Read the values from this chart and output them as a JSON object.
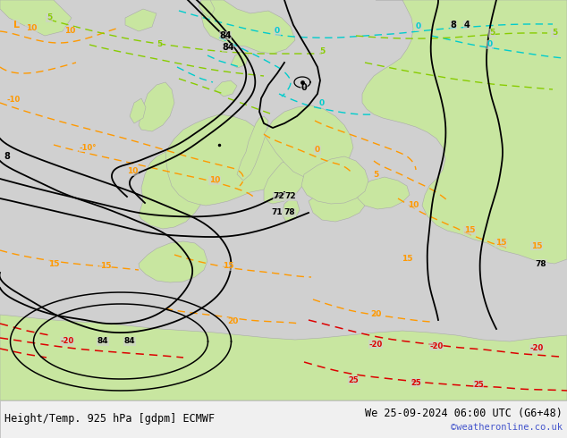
{
  "title_left": "Height/Temp. 925 hPa [gdpm] ECMWF",
  "title_right": "We 25-09-2024 06:00 UTC (G6+48)",
  "copyright": "©weatheronline.co.uk",
  "fig_width": 6.34,
  "fig_height": 4.9,
  "dpi": 100,
  "sea_color": "#d0d0d0",
  "land_color": "#c8e6a0",
  "border_color": "#aaaaaa",
  "bottom_bar_color": "#f0f0f0",
  "title_fontsize": 8.5,
  "copyright_color": "#4455cc",
  "copyright_fontsize": 7.5,
  "black_contour_color": "#000000",
  "orange_color": "#ff9900",
  "red_color": "#dd0000",
  "cyan_color": "#00cccc",
  "green_color": "#88cc00",
  "magenta_color": "#cc00cc"
}
